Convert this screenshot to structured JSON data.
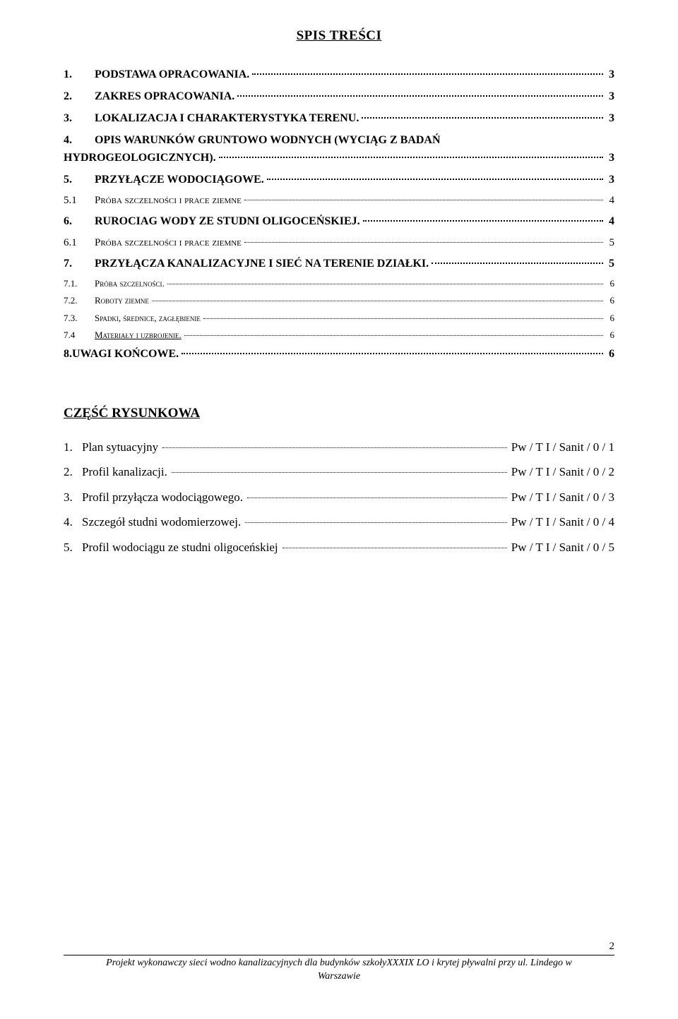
{
  "title": "SPIS TREŚCI",
  "toc": [
    {
      "num": "1.",
      "label": "PODSTAWA OPRACOWANIA.",
      "page": "3",
      "level": "main"
    },
    {
      "num": "2.",
      "label": "ZAKRES OPRACOWANIA.",
      "page": "3",
      "level": "main"
    },
    {
      "num": "3.",
      "label": "LOKALIZACJA I CHARAKTERYSTYKA TERENU.",
      "page": "3",
      "level": "main"
    },
    {
      "num": "4.",
      "label1": "OPIS WARUNKÓW GRUNTOWO WODNYCH (WYCIĄG Z BADAŃ",
      "label2": "HYDROGEOLOGICZNYCH).",
      "page": "3",
      "level": "main-multi"
    },
    {
      "num": "5.",
      "label": "PRZYŁĄCZE WODOCIĄGOWE.",
      "page": "3",
      "level": "main"
    },
    {
      "num": "5.1",
      "label": "Próba szczelności i prace ziemne",
      "page": "4",
      "level": "sub"
    },
    {
      "num": "6.",
      "label": "RUROCIAG WODY ZE STUDNI OLIGOCEŃSKIEJ.",
      "page": "4",
      "level": "main"
    },
    {
      "num": "6.1",
      "label": "Próba szczelności i prace ziemne",
      "page": "5",
      "level": "sub"
    },
    {
      "num": "7.",
      "label": "PRZYŁĄCZA KANALIZACYJNE I SIEĆ NA TERENIE DZIAŁKI.",
      "page": "5",
      "level": "main"
    },
    {
      "num": "7.1.",
      "label": "Próba szczelności.",
      "page": "6",
      "level": "sub-small"
    },
    {
      "num": "7.2.",
      "label": "Roboty ziemne",
      "page": "6",
      "level": "sub-small"
    },
    {
      "num": "7.3.",
      "label": "Spadki, średnice, zagłębienie",
      "page": "6",
      "level": "sub-small"
    },
    {
      "num": "7.4",
      "label": "Materiały i uzbrojenie.",
      "page": "6",
      "level": "sub-small-u"
    },
    {
      "num": "",
      "label": "8.UWAGI KOŃCOWE.",
      "page": "6",
      "level": "main-nonum"
    }
  ],
  "section2_title": "CZĘŚĆ RYSUNKOWA",
  "figures": [
    {
      "num": "1.",
      "label": "Plan sytuacyjny",
      "ref": "Pw / T I / Sanit / 0 / 1"
    },
    {
      "num": "2.",
      "label": "Profil kanalizacji.",
      "ref": "Pw / T I / Sanit / 0 / 2"
    },
    {
      "num": "3.",
      "label": "Profil przyłącza wodociągowego.",
      "ref": "Pw / T I / Sanit / 0 / 3"
    },
    {
      "num": "4.",
      "label": "Szczegół studni wodomierzowej.",
      "ref": "Pw / T I / Sanit / 0 / 4"
    },
    {
      "num": "5.",
      "label": "Profil wodociągu ze studni oligoceńskiej",
      "ref": "Pw / T I / Sanit / 0 / 5"
    }
  ],
  "footer_line1": "Projekt wykonawczy sieci wodno kanalizacyjnych dla budynków szkołyXXXIX LO i krytej pływalni przy ul. Lindego w",
  "footer_line2": "Warszawie",
  "page_number": "2"
}
